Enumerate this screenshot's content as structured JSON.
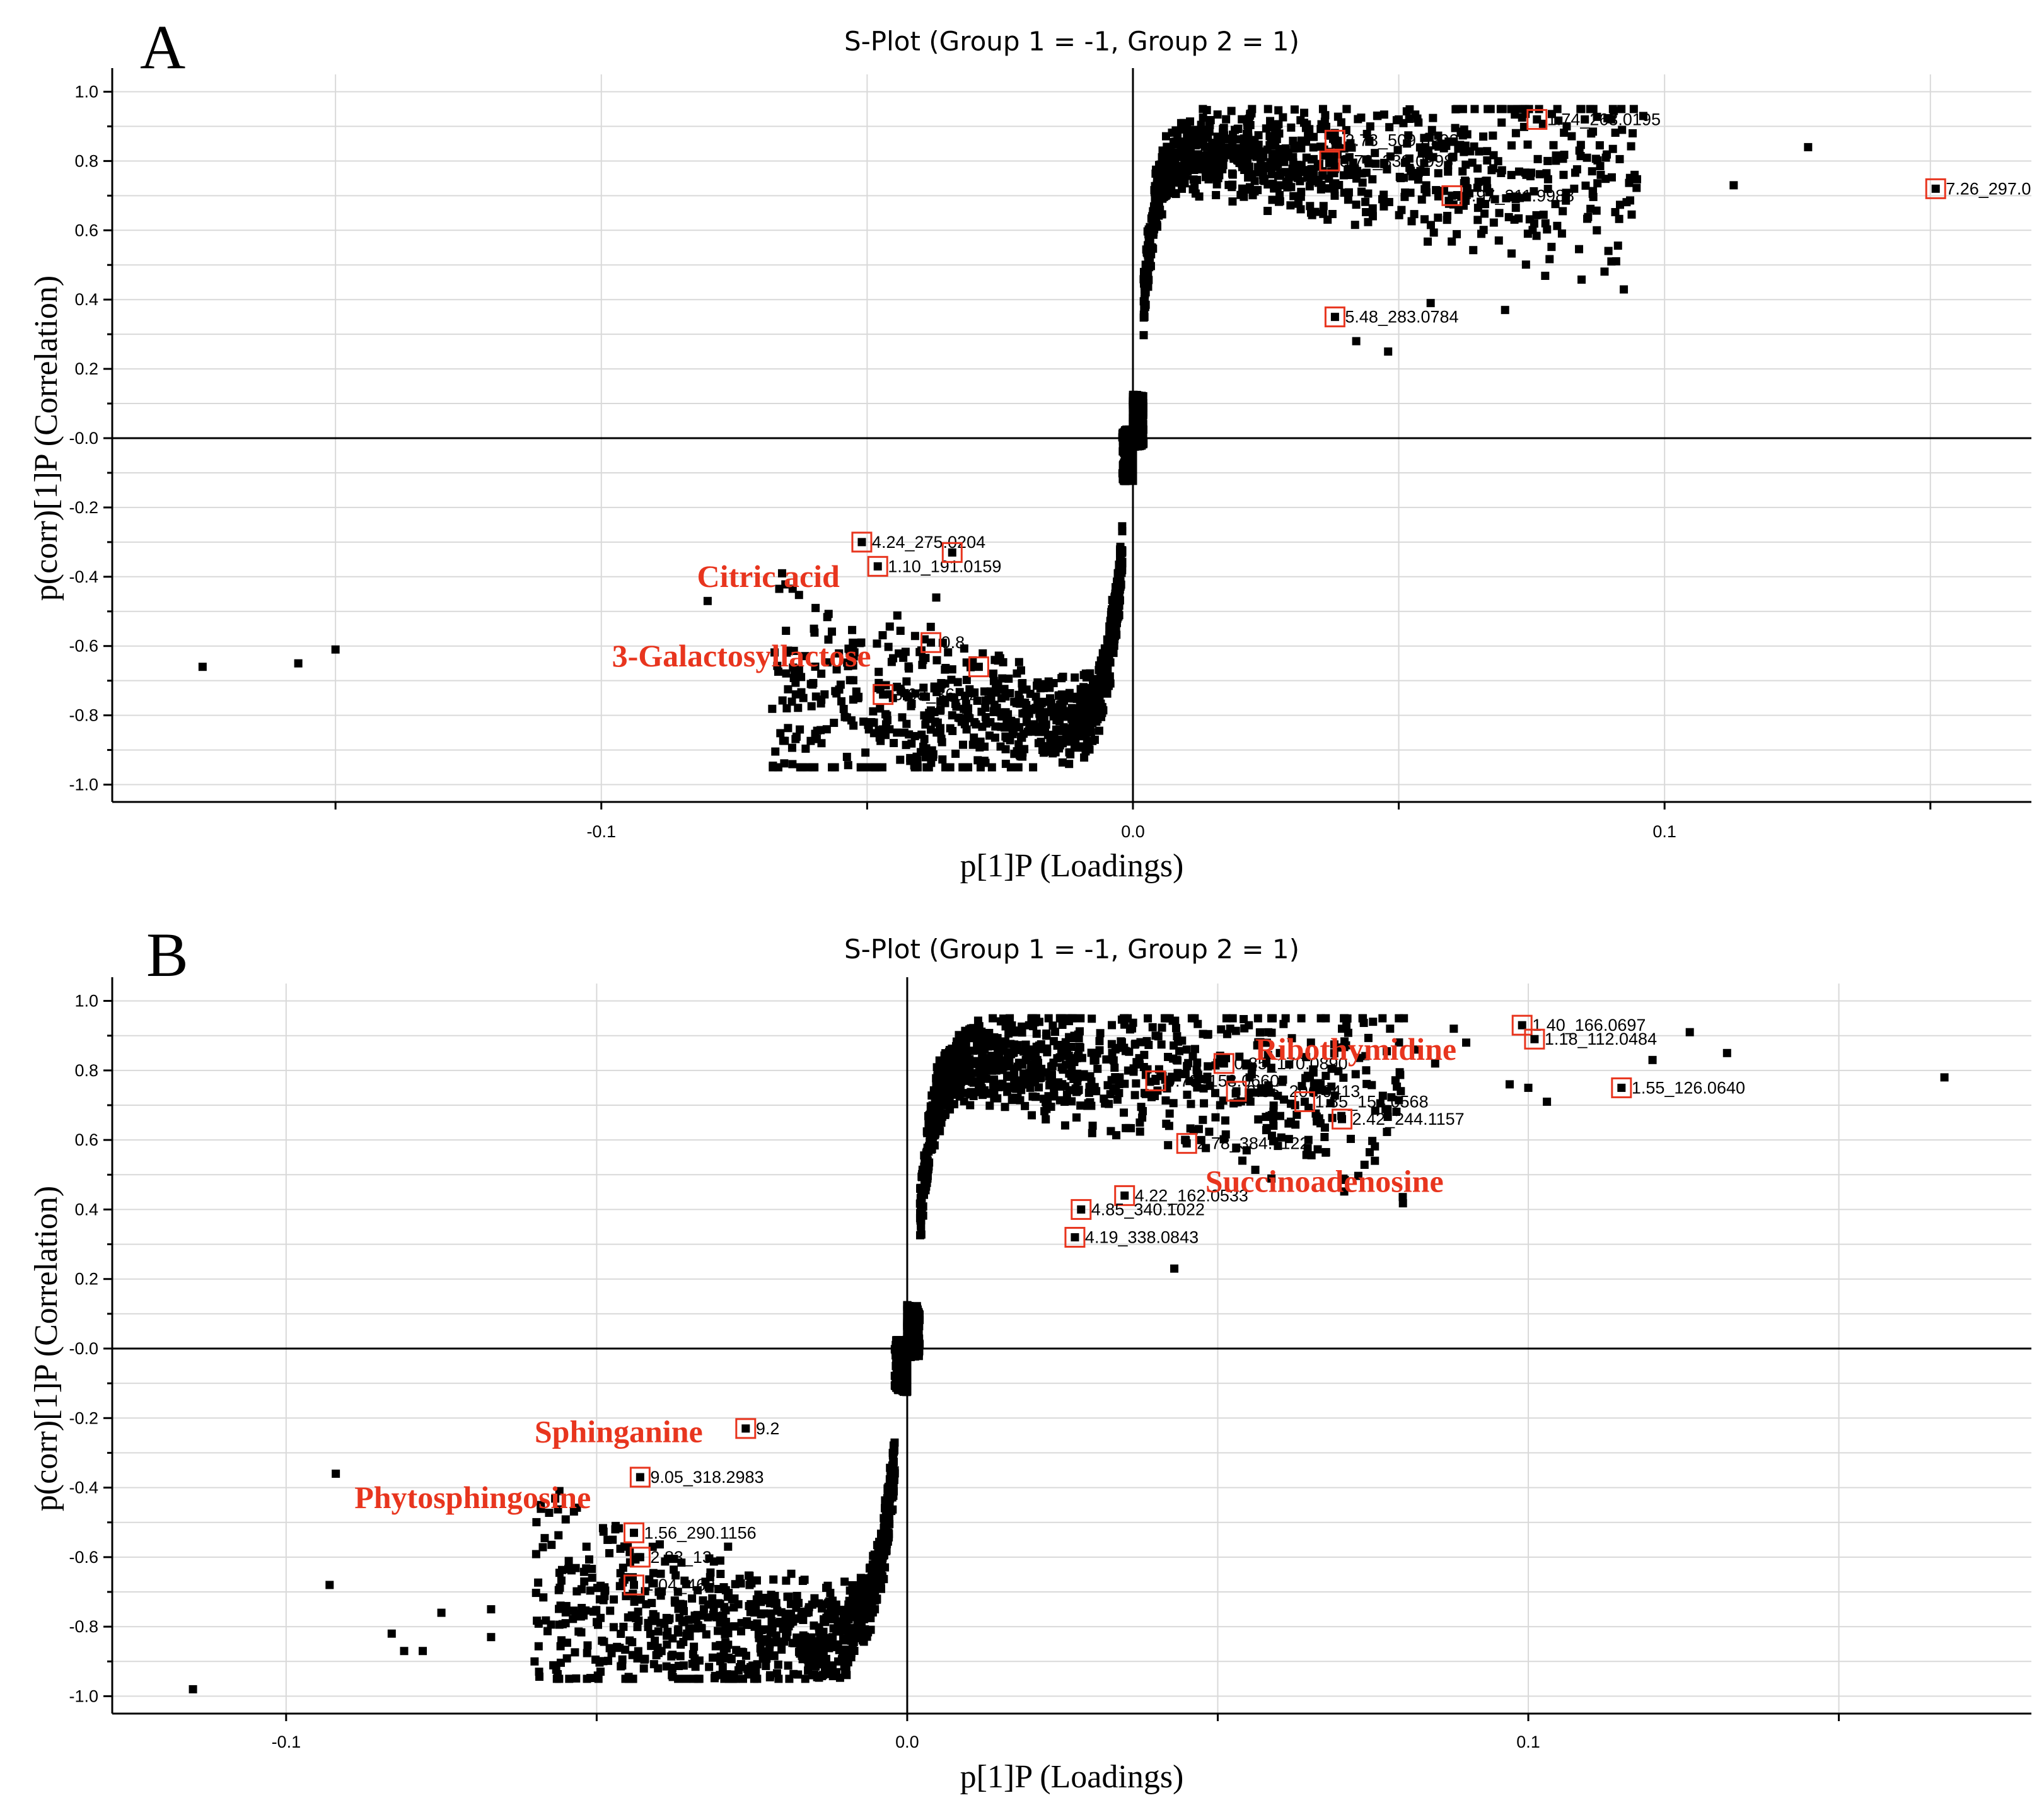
{
  "figure": {
    "caption": ""
  },
  "colors": {
    "highlight": "#e8351e",
    "point": "#000000",
    "grid": "#d9d9d9"
  },
  "chart_data": [
    {
      "panel": "A",
      "type": "scatter",
      "title": "S-Plot (Group 1 = -1, Group 2 = 1)",
      "xlabel": "p[1]P (Loadings)",
      "ylabel": "p(corr)[1]P (Correlation)",
      "xlim": [
        -0.192,
        0.169
      ],
      "ylim": [
        -1.05,
        1.05
      ],
      "xticks": [
        -0.1,
        0.0,
        0.1
      ],
      "xtick_labels": [
        "-0.1",
        "0.0",
        "0.1"
      ],
      "yticks": [
        -1.0,
        -0.8,
        -0.6,
        -0.4,
        -0.2,
        0.0,
        0.2,
        0.4,
        0.6,
        0.8,
        1.0
      ],
      "ytick_labels": [
        "-1.0",
        "-0.8",
        "-0.6",
        "-0.4",
        "-0.2",
        "-0.0",
        "0.2",
        "0.4",
        "0.6",
        "0.8",
        "1.0"
      ],
      "grid": true,
      "density": {
        "neg_xmin": -0.068,
        "pos_xmax": 0.095,
        "count": 2600,
        "seed": 11
      },
      "extra_points": [
        [
          -0.175,
          -0.66
        ],
        [
          -0.157,
          -0.65
        ],
        [
          -0.15,
          -0.61
        ],
        [
          -0.08,
          -0.47
        ],
        [
          -0.066,
          -0.39
        ],
        [
          -0.062,
          -0.75
        ],
        [
          -0.06,
          -0.55
        ],
        [
          -0.056,
          -0.73
        ],
        [
          -0.045,
          -0.88
        ],
        [
          -0.043,
          -0.85
        ],
        [
          -0.041,
          -0.86
        ],
        [
          -0.037,
          -0.46
        ],
        [
          -0.034,
          -0.8
        ],
        [
          -0.031,
          -0.78
        ],
        [
          0.046,
          0.93
        ],
        [
          0.05,
          0.92
        ],
        [
          0.055,
          0.84
        ],
        [
          0.058,
          0.85
        ],
        [
          0.06,
          0.81
        ],
        [
          0.062,
          0.77
        ],
        [
          0.065,
          0.74
        ],
        [
          0.067,
          0.71
        ],
        [
          0.072,
          0.69
        ],
        [
          0.074,
          0.76
        ],
        [
          0.078,
          0.8
        ],
        [
          0.081,
          0.76
        ],
        [
          0.083,
          0.72
        ],
        [
          0.085,
          0.92
        ],
        [
          0.088,
          0.76
        ],
        [
          0.092,
          0.89
        ],
        [
          0.094,
          0.88
        ],
        [
          0.096,
          0.93
        ],
        [
          0.09,
          0.51
        ],
        [
          0.113,
          0.73
        ],
        [
          0.127,
          0.84
        ],
        [
          0.07,
          0.37
        ],
        [
          0.056,
          0.39
        ],
        [
          0.042,
          0.28
        ],
        [
          0.048,
          0.25
        ]
      ],
      "highlighted": [
        {
          "x": 0.076,
          "y": 0.92,
          "label": "1.74_263.0195"
        },
        {
          "x": 0.038,
          "y": 0.86,
          "label": "2.73_509.0992"
        },
        {
          "x": 0.037,
          "y": 0.8,
          "label": "3.73_332.0998"
        },
        {
          "x": 0.06,
          "y": 0.7,
          "label": "4.97_211.9988"
        },
        {
          "x": 0.151,
          "y": 0.72,
          "label": "7.26_297.0"
        },
        {
          "x": 0.038,
          "y": 0.35,
          "label": "5.48_283.0784"
        },
        {
          "x": -0.051,
          "y": -0.3,
          "label": "4.24_275.0204"
        },
        {
          "x": -0.048,
          "y": -0.37,
          "label": "1.10_191.0159"
        },
        {
          "x": -0.034,
          "y": -0.33,
          "label": ""
        },
        {
          "x": -0.038,
          "y": -0.59,
          "label": "0.8"
        },
        {
          "x": -0.029,
          "y": -0.66,
          "label": ""
        },
        {
          "x": -0.047,
          "y": -0.74,
          "label": "3.69_365.2"
        }
      ],
      "annotations": [
        {
          "text": "Citric acid",
          "x": -0.082,
          "y": -0.4
        },
        {
          "text": "3-Galactosyllactose",
          "x": -0.098,
          "y": -0.63
        }
      ],
      "fragments": [
        {
          "text": "0",
          "x": -0.006,
          "y": -0.66
        }
      ]
    },
    {
      "panel": "B",
      "type": "scatter",
      "title": "S-Plot (Group 1 = -1, Group 2 = 1)",
      "xlabel": "p[1]P (Loadings)",
      "ylabel": "p(corr)[1]P (Correlation)",
      "xlim": [
        -0.128,
        0.181
      ],
      "ylim": [
        -1.05,
        1.05
      ],
      "xticks": [
        -0.1,
        0.0,
        0.1
      ],
      "xtick_labels": [
        "-0.1",
        "0.0",
        "0.1"
      ],
      "yticks": [
        -1.0,
        -0.8,
        -0.6,
        -0.4,
        -0.2,
        0.0,
        0.2,
        0.4,
        0.6,
        0.8,
        1.0
      ],
      "ytick_labels": [
        "-1.0",
        "-0.8",
        "-0.6",
        "-0.4",
        "-0.2",
        "-0.0",
        "0.2",
        "0.4",
        "0.6",
        "0.8",
        "1.0"
      ],
      "grid": true,
      "density": {
        "neg_xmin": -0.06,
        "pos_xmax": 0.08,
        "count": 2800,
        "seed": 23
      },
      "extra_points": [
        [
          -0.115,
          -0.98
        ],
        [
          -0.093,
          -0.68
        ],
        [
          -0.092,
          -0.36
        ],
        [
          -0.083,
          -0.82
        ],
        [
          -0.081,
          -0.87
        ],
        [
          -0.078,
          -0.87
        ],
        [
          -0.075,
          -0.76
        ],
        [
          -0.067,
          -0.75
        ],
        [
          -0.067,
          -0.83
        ],
        [
          -0.06,
          -0.9
        ],
        [
          -0.056,
          -0.41
        ],
        [
          -0.059,
          -0.45
        ],
        [
          -0.055,
          -0.79
        ],
        [
          -0.052,
          -0.67
        ],
        [
          -0.047,
          -0.52
        ],
        [
          -0.045,
          -0.57
        ],
        [
          -0.04,
          -0.7
        ],
        [
          0.04,
          0.9
        ],
        [
          0.045,
          0.86
        ],
        [
          0.052,
          0.92
        ],
        [
          0.055,
          0.93
        ],
        [
          0.06,
          0.85
        ],
        [
          0.065,
          0.88
        ],
        [
          0.07,
          0.92
        ],
        [
          0.075,
          0.94
        ],
        [
          0.082,
          0.86
        ],
        [
          0.085,
          0.82
        ],
        [
          0.088,
          0.92
        ],
        [
          0.09,
          0.88
        ],
        [
          0.097,
          0.76
        ],
        [
          0.1,
          0.75
        ],
        [
          0.103,
          0.71
        ],
        [
          0.12,
          0.83
        ],
        [
          0.126,
          0.91
        ],
        [
          0.132,
          0.85
        ],
        [
          0.167,
          0.78
        ],
        [
          0.043,
          0.23
        ]
      ],
      "highlighted": [
        {
          "x": 0.099,
          "y": 0.93,
          "label": "1.40_166.0697"
        },
        {
          "x": 0.101,
          "y": 0.89,
          "label": "1.18_112.0484"
        },
        {
          "x": 0.115,
          "y": 0.75,
          "label": "1.55_126.0640"
        },
        {
          "x": 0.051,
          "y": 0.82,
          "label": "0.85_170.0890"
        },
        {
          "x": 0.04,
          "y": 0.77,
          "label": "0.78_153.0660"
        },
        {
          "x": 0.053,
          "y": 0.74,
          "label": "3.35_206.0413"
        },
        {
          "x": 0.064,
          "y": 0.71,
          "label": "1.85_154.0568"
        },
        {
          "x": 0.07,
          "y": 0.66,
          "label": "2.42_244.1157"
        },
        {
          "x": 0.045,
          "y": 0.59,
          "label": "2.78_384.1122"
        },
        {
          "x": 0.035,
          "y": 0.44,
          "label": "4.22_162.0533"
        },
        {
          "x": 0.028,
          "y": 0.4,
          "label": "4.85_340.1022"
        },
        {
          "x": 0.027,
          "y": 0.32,
          "label": "4.19_338.0843"
        },
        {
          "x": -0.026,
          "y": -0.23,
          "label": "9.2"
        },
        {
          "x": -0.043,
          "y": -0.37,
          "label": "9.05_318.2983"
        },
        {
          "x": -0.044,
          "y": -0.53,
          "label": "1.56_290.1156"
        },
        {
          "x": -0.043,
          "y": -0.6,
          "label": "2.83_13"
        },
        {
          "x": -0.044,
          "y": -0.68,
          "label": "1.04_469"
        }
      ],
      "annotations": [
        {
          "text": "Ribothymidine",
          "x": 0.056,
          "y": 0.86
        },
        {
          "text": "Succinoadenosine",
          "x": 0.048,
          "y": 0.48
        },
        {
          "text": "Sphinganine",
          "x": -0.06,
          "y": -0.24
        },
        {
          "text": "Phytosphingosine",
          "x": -0.089,
          "y": -0.43
        }
      ],
      "fragments": []
    }
  ]
}
